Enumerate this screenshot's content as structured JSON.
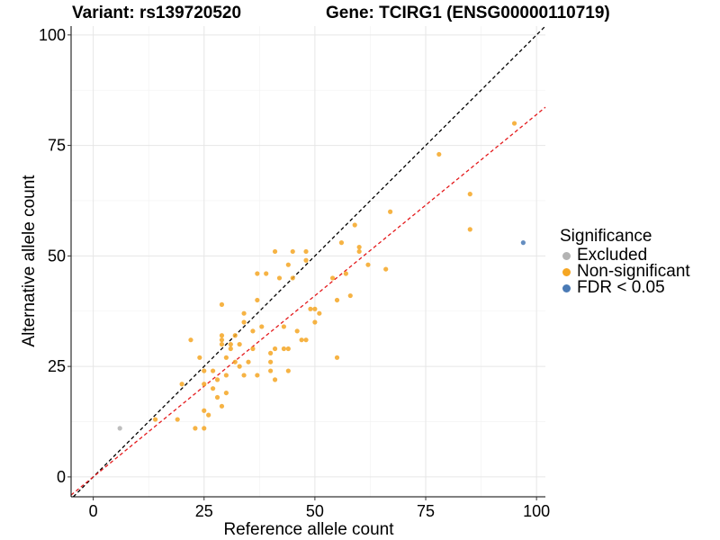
{
  "title_left": "Variant: rs139720520",
  "title_right": "Gene: TCIRG1 (ENSG00000110719)",
  "chart_data": {
    "type": "scatter",
    "xlabel": "Reference allele count",
    "ylabel": "Alternative allele count",
    "xlim": [
      -5,
      102
    ],
    "ylim": [
      -4.5,
      102
    ],
    "xticks": [
      0,
      25,
      50,
      75,
      100
    ],
    "yticks": [
      0,
      25,
      50,
      75,
      100
    ],
    "grid": true,
    "legend_title": "Significance",
    "legend_position": "right",
    "colors": {
      "Excluded": "#b3b3b3",
      "Non-significant": "#f5a623",
      "FDR < 0.05": "#4a7ab5"
    },
    "reference_lines": [
      {
        "label": "y = x",
        "slope": 1,
        "intercept": 0,
        "color": "#000000",
        "style": "dashed"
      },
      {
        "label": "fit",
        "slope": 0.82,
        "intercept": 0,
        "color": "#e41a1c",
        "style": "dashed"
      }
    ],
    "series": [
      {
        "name": "Excluded",
        "points": [
          [
            6,
            11
          ]
        ]
      },
      {
        "name": "FDR < 0.05",
        "points": [
          [
            97,
            53
          ]
        ]
      },
      {
        "name": "Non-significant",
        "points": [
          [
            14,
            13
          ],
          [
            19,
            13
          ],
          [
            20,
            21
          ],
          [
            22,
            31
          ],
          [
            23,
            11
          ],
          [
            24,
            27
          ],
          [
            25,
            11
          ],
          [
            25,
            15
          ],
          [
            25,
            21
          ],
          [
            25,
            24
          ],
          [
            26,
            14
          ],
          [
            27,
            20
          ],
          [
            27,
            24
          ],
          [
            28,
            18
          ],
          [
            28,
            22
          ],
          [
            29,
            16
          ],
          [
            29,
            30
          ],
          [
            29,
            31
          ],
          [
            29,
            32
          ],
          [
            29,
            39
          ],
          [
            30,
            19
          ],
          [
            30,
            23
          ],
          [
            30,
            27
          ],
          [
            31,
            29
          ],
          [
            31,
            30
          ],
          [
            32,
            26
          ],
          [
            32,
            32
          ],
          [
            33,
            25
          ],
          [
            33,
            30
          ],
          [
            34,
            23
          ],
          [
            34,
            35
          ],
          [
            34,
            37
          ],
          [
            35,
            26
          ],
          [
            36,
            29
          ],
          [
            36,
            33
          ],
          [
            37,
            23
          ],
          [
            37,
            40
          ],
          [
            37,
            46
          ],
          [
            38,
            34
          ],
          [
            39,
            46
          ],
          [
            40,
            24
          ],
          [
            40,
            26
          ],
          [
            40,
            28
          ],
          [
            41,
            22
          ],
          [
            41,
            29
          ],
          [
            41,
            51
          ],
          [
            42,
            45
          ],
          [
            43,
            29
          ],
          [
            43,
            34
          ],
          [
            44,
            24
          ],
          [
            44,
            29
          ],
          [
            44,
            48
          ],
          [
            45,
            45
          ],
          [
            45,
            51
          ],
          [
            46,
            33
          ],
          [
            47,
            31
          ],
          [
            48,
            31
          ],
          [
            48,
            49
          ],
          [
            48,
            51
          ],
          [
            49,
            38
          ],
          [
            50,
            35
          ],
          [
            50,
            38
          ],
          [
            51,
            37
          ],
          [
            54,
            45
          ],
          [
            55,
            27
          ],
          [
            55,
            40
          ],
          [
            56,
            53
          ],
          [
            57,
            46
          ],
          [
            58,
            41
          ],
          [
            59,
            57
          ],
          [
            60,
            51
          ],
          [
            60,
            52
          ],
          [
            62,
            48
          ],
          [
            66,
            47
          ],
          [
            67,
            60
          ],
          [
            78,
            73
          ],
          [
            85,
            56
          ],
          [
            85,
            64
          ],
          [
            95,
            80
          ]
        ]
      }
    ]
  }
}
